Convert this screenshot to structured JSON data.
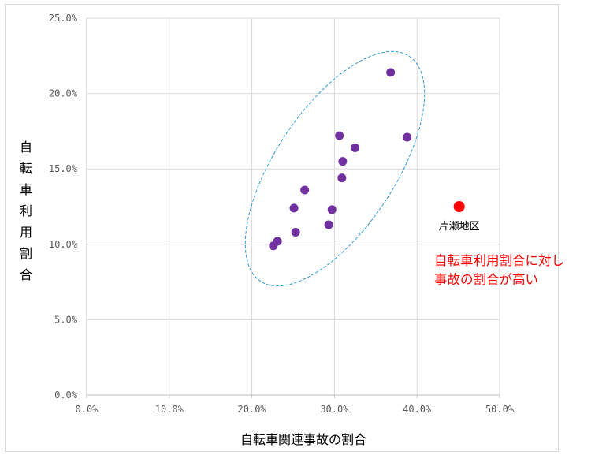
{
  "chart_data": {
    "type": "scatter",
    "xlabel": "自転車関連事故の割合",
    "ylabel": "自転車利用割合",
    "xlim": [
      0,
      50
    ],
    "ylim": [
      0,
      25
    ],
    "x_ticks": [
      "0.0%",
      "10.0%",
      "20.0%",
      "30.0%",
      "40.0%",
      "50.0%"
    ],
    "y_ticks": [
      "0.0%",
      "5.0%",
      "10.0%",
      "15.0%",
      "20.0%",
      "25.0%"
    ],
    "x_tick_values": [
      0,
      10,
      20,
      30,
      40,
      50
    ],
    "y_tick_values": [
      0,
      5,
      10,
      15,
      20,
      25
    ],
    "grid": true,
    "series": [
      {
        "color": "#7030a0",
        "points": [
          {
            "x": 36.8,
            "y": 21.4
          },
          {
            "x": 30.6,
            "y": 17.2
          },
          {
            "x": 38.8,
            "y": 17.1
          },
          {
            "x": 32.5,
            "y": 16.4
          },
          {
            "x": 31.0,
            "y": 15.5
          },
          {
            "x": 30.9,
            "y": 14.4
          },
          {
            "x": 26.4,
            "y": 13.6
          },
          {
            "x": 25.1,
            "y": 12.4
          },
          {
            "x": 29.7,
            "y": 12.3
          },
          {
            "x": 29.3,
            "y": 11.3
          },
          {
            "x": 25.3,
            "y": 10.8
          },
          {
            "x": 23.1,
            "y": 10.2
          },
          {
            "x": 22.6,
            "y": 9.9
          }
        ]
      },
      {
        "color": "#ff0000",
        "points": [
          {
            "x": 45.1,
            "y": 12.5,
            "label": "片瀬地区"
          }
        ]
      }
    ],
    "annotations": [
      {
        "text": "自転車利用割合に対し",
        "color": "#ff0000"
      },
      {
        "text": "事故の割合が高い",
        "color": "#ff0000"
      }
    ],
    "ellipse_color": "#2e9bd6"
  }
}
